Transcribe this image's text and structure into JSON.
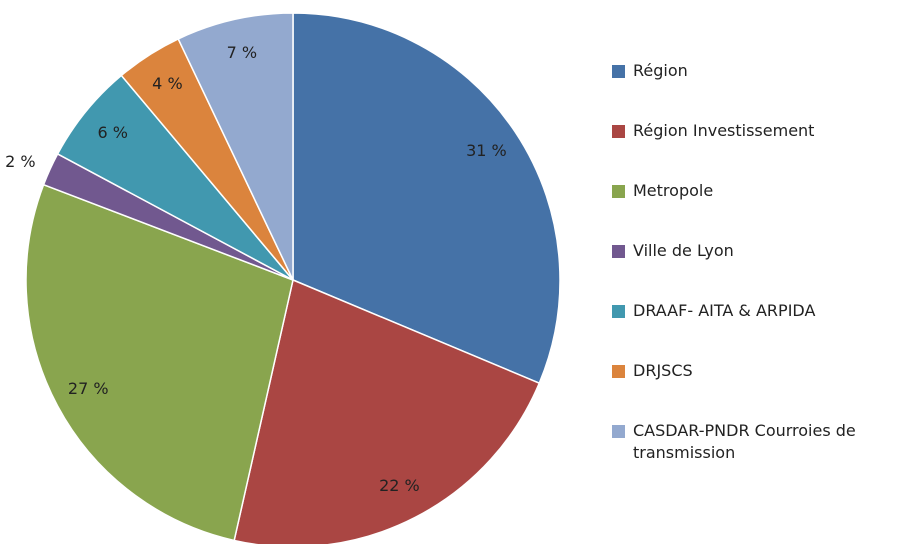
{
  "chart_data": {
    "type": "pie",
    "categories": [
      "Région",
      "Région Investissement",
      "Metropole",
      "Ville de Lyon",
      "DRAAF-  AITA & ARPIDA",
      "DRJSCS",
      "CASDAR-PNDR Courroies de transmission"
    ],
    "values": [
      31,
      22,
      27,
      2,
      6,
      4,
      7
    ],
    "value_labels": [
      "31 %",
      "22 %",
      "27 %",
      "2 %",
      "6 %",
      "4 %",
      "7 %"
    ],
    "colors": [
      "#4572a7",
      "#aa4643",
      "#89a54e",
      "#71588f",
      "#4198af",
      "#db843d",
      "#93a9cf"
    ],
    "legend": "right"
  }
}
